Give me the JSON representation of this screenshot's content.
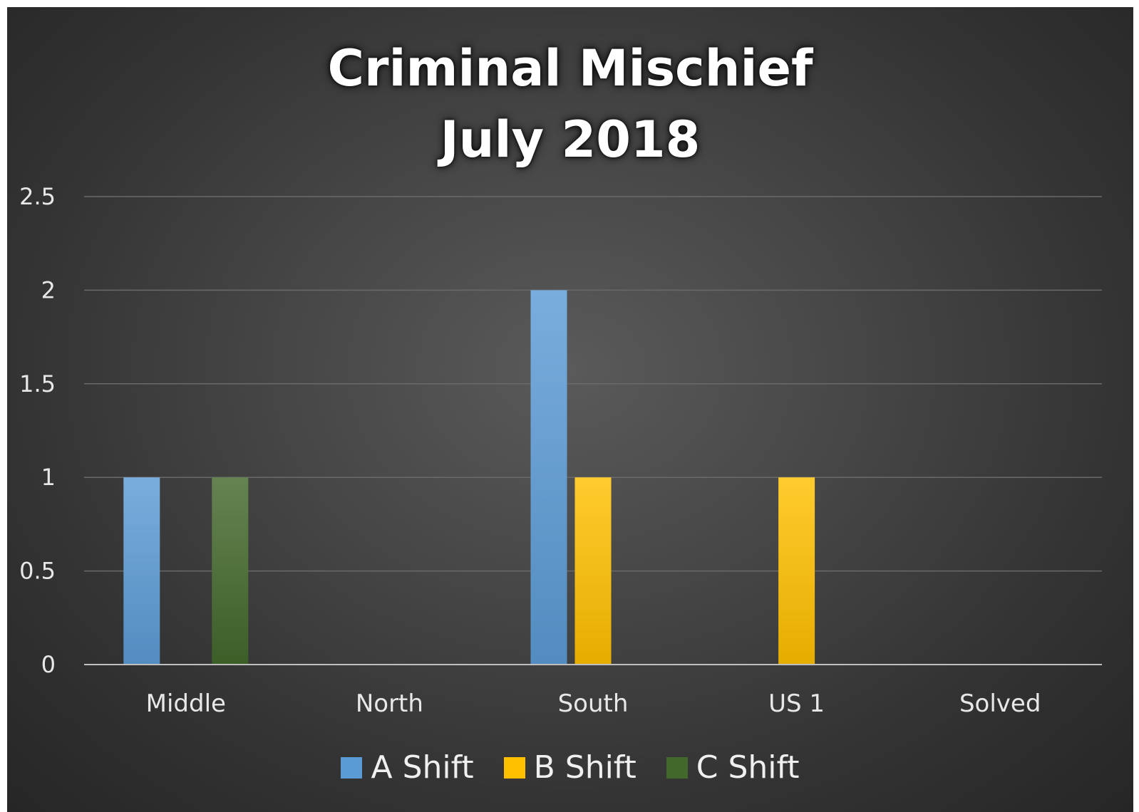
{
  "chart_data": {
    "type": "bar",
    "title": "Criminal Mischief",
    "subtitle": "July 2018",
    "xlabel": "",
    "ylabel": "",
    "categories": [
      "Middle",
      "North",
      "South",
      "US 1",
      "Solved"
    ],
    "series": [
      {
        "name": "A Shift",
        "color": "#5b9bd5",
        "values": [
          1,
          0,
          2,
          0,
          0
        ]
      },
      {
        "name": "B Shift",
        "color": "#ffc000",
        "values": [
          0,
          0,
          1,
          1,
          0
        ]
      },
      {
        "name": "C Shift",
        "color": "#43682b",
        "values": [
          1,
          0,
          0,
          0,
          0
        ]
      }
    ],
    "ylim": [
      0,
      2.5
    ],
    "yticks": [
      "0",
      "0.5",
      "1",
      "1.5",
      "2",
      "2.5"
    ],
    "grid": true,
    "legend_position": "bottom"
  }
}
